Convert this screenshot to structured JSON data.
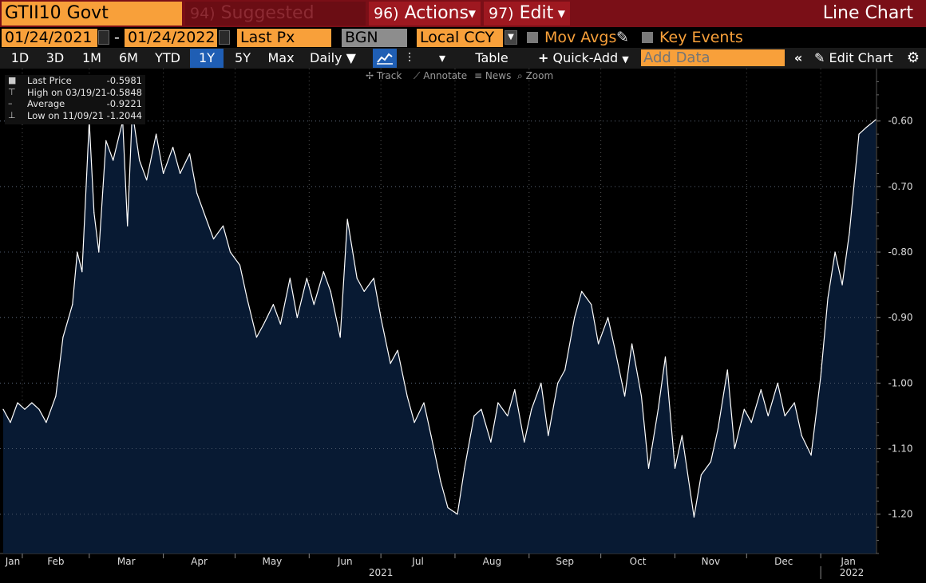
{
  "header": {
    "ticker": "GTII10 Govt",
    "suggested_num": "94)",
    "suggested_label": "Suggested Charts",
    "actions_num": "96)",
    "actions_label": "Actions",
    "edit_num": "97)",
    "edit_label": "Edit",
    "title": "Line Chart"
  },
  "settings": {
    "start_date": "01/24/2021",
    "date_sep": "-",
    "end_date": "01/24/2022",
    "field": "Last Px",
    "source": "BGN",
    "currency": "Local CCY",
    "mov_avgs": "Mov Avgs",
    "key_events": "Key Events"
  },
  "toolbar": {
    "ranges": [
      "1D",
      "3D",
      "1M",
      "6M",
      "YTD",
      "1Y",
      "5Y",
      "Max"
    ],
    "selected_range": "1Y",
    "frequency": "Daily",
    "table_label": "Table",
    "quick_add": "Quick-Add",
    "add_data_placeholder": "Add Data",
    "edit_chart": "Edit Chart",
    "tools": [
      "Track",
      "Annotate",
      "News",
      "Zoom"
    ]
  },
  "legend": [
    {
      "label": "Last Price",
      "value": "-0.5981",
      "icon": "square-icon"
    },
    {
      "label": "High on 03/19/21",
      "value": "-0.5848",
      "icon": "high-marker-icon"
    },
    {
      "label": "Average",
      "value": "-0.9221",
      "icon": "average-line-icon"
    },
    {
      "label": "Low on 11/09/21",
      "value": "-1.2044",
      "icon": "low-marker-icon"
    }
  ],
  "colors": {
    "accent_orange": "#f8a03a",
    "header_red": "#7a0f17",
    "selected_blue": "#1f5eb4",
    "line": "#ffffff",
    "area_fill": "#081a33",
    "background": "#000000"
  },
  "chart_data": {
    "type": "area",
    "x_unit": "date",
    "x_start": "2021-01-24",
    "x_end": "2022-01-24",
    "month_ticks": [
      "Jan",
      "Feb",
      "Mar",
      "Apr",
      "May",
      "Jun",
      "Jul",
      "Aug",
      "Sep",
      "Oct",
      "Nov",
      "Dec",
      "Jan"
    ],
    "year_labels": [
      "2021",
      "2022"
    ],
    "y_ticks": [
      "-0.60",
      "-0.70",
      "-0.80",
      "-0.90",
      "-1.00",
      "-1.10",
      "-1.20"
    ],
    "ylim": [
      -1.26,
      -0.52
    ],
    "grid": true,
    "series": [
      {
        "values": [
          [
            "2021-01-24",
            -1.04
          ],
          [
            "2021-01-27",
            -1.06
          ],
          [
            "2021-01-30",
            -1.03
          ],
          [
            "2021-02-02",
            -1.04
          ],
          [
            "2021-02-05",
            -1.03
          ],
          [
            "2021-02-08",
            -1.04
          ],
          [
            "2021-02-11",
            -1.06
          ],
          [
            "2021-02-15",
            -1.02
          ],
          [
            "2021-02-18",
            -0.93
          ],
          [
            "2021-02-22",
            -0.88
          ],
          [
            "2021-02-24",
            -0.8
          ],
          [
            "2021-02-26",
            -0.83
          ],
          [
            "2021-03-01",
            -0.6
          ],
          [
            "2021-03-03",
            -0.74
          ],
          [
            "2021-03-05",
            -0.8
          ],
          [
            "2021-03-08",
            -0.63
          ],
          [
            "2021-03-11",
            -0.66
          ],
          [
            "2021-03-15",
            -0.6
          ],
          [
            "2021-03-17",
            -0.76
          ],
          [
            "2021-03-19",
            -0.5848
          ],
          [
            "2021-03-22",
            -0.66
          ],
          [
            "2021-03-25",
            -0.69
          ],
          [
            "2021-03-29",
            -0.62
          ],
          [
            "2021-04-01",
            -0.68
          ],
          [
            "2021-04-05",
            -0.64
          ],
          [
            "2021-04-08",
            -0.68
          ],
          [
            "2021-04-12",
            -0.65
          ],
          [
            "2021-04-15",
            -0.71
          ],
          [
            "2021-04-19",
            -0.75
          ],
          [
            "2021-04-22",
            -0.78
          ],
          [
            "2021-04-26",
            -0.76
          ],
          [
            "2021-04-29",
            -0.8
          ],
          [
            "2021-05-03",
            -0.82
          ],
          [
            "2021-05-06",
            -0.87
          ],
          [
            "2021-05-10",
            -0.93
          ],
          [
            "2021-05-13",
            -0.91
          ],
          [
            "2021-05-17",
            -0.88
          ],
          [
            "2021-05-20",
            -0.91
          ],
          [
            "2021-05-24",
            -0.84
          ],
          [
            "2021-05-27",
            -0.9
          ],
          [
            "2021-05-31",
            -0.84
          ],
          [
            "2021-06-03",
            -0.88
          ],
          [
            "2021-06-07",
            -0.83
          ],
          [
            "2021-06-10",
            -0.86
          ],
          [
            "2021-06-14",
            -0.93
          ],
          [
            "2021-06-17",
            -0.75
          ],
          [
            "2021-06-21",
            -0.84
          ],
          [
            "2021-06-24",
            -0.86
          ],
          [
            "2021-06-28",
            -0.84
          ],
          [
            "2021-07-01",
            -0.9
          ],
          [
            "2021-07-05",
            -0.97
          ],
          [
            "2021-07-08",
            -0.95
          ],
          [
            "2021-07-12",
            -1.02
          ],
          [
            "2021-07-15",
            -1.06
          ],
          [
            "2021-07-19",
            -1.03
          ],
          [
            "2021-07-22",
            -1.08
          ],
          [
            "2021-07-26",
            -1.15
          ],
          [
            "2021-07-29",
            -1.19
          ],
          [
            "2021-08-02",
            -1.2
          ],
          [
            "2021-08-05",
            -1.13
          ],
          [
            "2021-08-09",
            -1.05
          ],
          [
            "2021-08-12",
            -1.04
          ],
          [
            "2021-08-16",
            -1.09
          ],
          [
            "2021-08-19",
            -1.03
          ],
          [
            "2021-08-23",
            -1.05
          ],
          [
            "2021-08-26",
            -1.01
          ],
          [
            "2021-08-30",
            -1.09
          ],
          [
            "2021-09-02",
            -1.04
          ],
          [
            "2021-09-06",
            -1.0
          ],
          [
            "2021-09-09",
            -1.08
          ],
          [
            "2021-09-13",
            -1.0
          ],
          [
            "2021-09-16",
            -0.98
          ],
          [
            "2021-09-20",
            -0.9
          ],
          [
            "2021-09-23",
            -0.86
          ],
          [
            "2021-09-27",
            -0.88
          ],
          [
            "2021-09-30",
            -0.94
          ],
          [
            "2021-10-04",
            -0.9
          ],
          [
            "2021-10-07",
            -0.95
          ],
          [
            "2021-10-11",
            -1.02
          ],
          [
            "2021-10-14",
            -0.94
          ],
          [
            "2021-10-18",
            -1.02
          ],
          [
            "2021-10-21",
            -1.13
          ],
          [
            "2021-10-25",
            -1.04
          ],
          [
            "2021-10-28",
            -0.96
          ],
          [
            "2021-11-01",
            -1.13
          ],
          [
            "2021-11-04",
            -1.08
          ],
          [
            "2021-11-09",
            -1.2044
          ],
          [
            "2021-11-12",
            -1.14
          ],
          [
            "2021-11-16",
            -1.12
          ],
          [
            "2021-11-19",
            -1.07
          ],
          [
            "2021-11-23",
            -0.98
          ],
          [
            "2021-11-26",
            -1.1
          ],
          [
            "2021-11-30",
            -1.04
          ],
          [
            "2021-12-03",
            -1.06
          ],
          [
            "2021-12-07",
            -1.01
          ],
          [
            "2021-12-10",
            -1.05
          ],
          [
            "2021-12-14",
            -1.0
          ],
          [
            "2021-12-17",
            -1.05
          ],
          [
            "2021-12-21",
            -1.03
          ],
          [
            "2021-12-24",
            -1.08
          ],
          [
            "2021-12-28",
            -1.11
          ],
          [
            "2022-01-01",
            -0.99
          ],
          [
            "2022-01-04",
            -0.87
          ],
          [
            "2022-01-07",
            -0.8
          ],
          [
            "2022-01-10",
            -0.85
          ],
          [
            "2022-01-13",
            -0.77
          ],
          [
            "2022-01-17",
            -0.62
          ],
          [
            "2022-01-20",
            -0.61
          ],
          [
            "2022-01-24",
            -0.5981
          ]
        ]
      }
    ]
  }
}
